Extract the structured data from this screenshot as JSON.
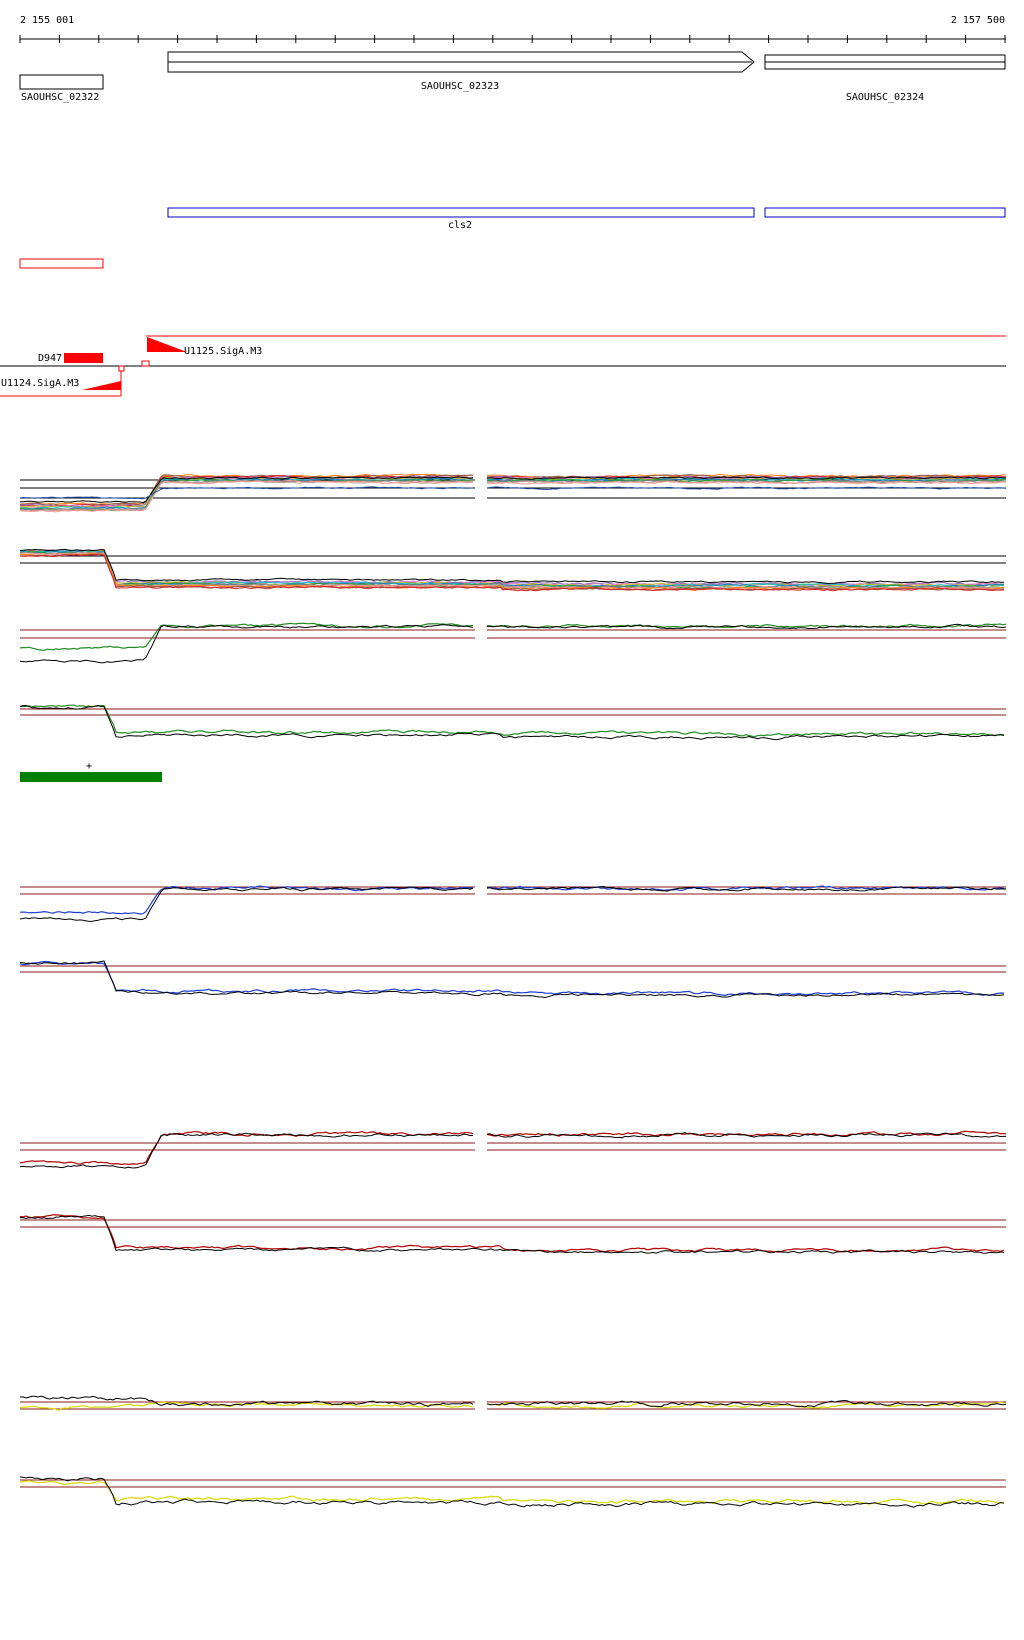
{
  "ruler": {
    "start_label": "2 155 001",
    "end_label": "2 157 500"
  },
  "genes": [
    {
      "label": "SAOUHSC_02322",
      "strand": "-"
    },
    {
      "label": "SAOUHSC_02323",
      "strand": "+"
    },
    {
      "label": "SAOUHSC_02324",
      "strand": "+"
    }
  ],
  "operon_label": "cls2",
  "features": {
    "d947": "D947",
    "u1125": "U1125.SigA.M3",
    "u1124": "U1124.SigA.M3",
    "condition_mark": "+"
  },
  "colors": {
    "gene_outline": "#000000",
    "operon": "#0000cc",
    "feature_red": "#ff0000",
    "condition_block": "#008000",
    "track_green": "#228b22",
    "track_blue": "#1f3fd0",
    "track_red": "#b00000",
    "track_yellow": "#d8d800",
    "reference_line": "#8b1a1a"
  },
  "tracks": [
    {
      "name": "expression-multi-top",
      "color": "multi"
    },
    {
      "name": "expression-multi-bottom",
      "color": "multi"
    },
    {
      "name": "expression-green-top",
      "color": "#228b22"
    },
    {
      "name": "expression-green-bottom",
      "color": "#228b22"
    },
    {
      "name": "expression-blue-top",
      "color": "#1f3fd0"
    },
    {
      "name": "expression-blue-bottom",
      "color": "#1f3fd0"
    },
    {
      "name": "expression-red-top",
      "color": "#b00000"
    },
    {
      "name": "expression-red-bottom",
      "color": "#b00000"
    },
    {
      "name": "expression-yellow-top",
      "color": "#d8d800"
    },
    {
      "name": "expression-yellow-bottom",
      "color": "#d8d800"
    }
  ]
}
